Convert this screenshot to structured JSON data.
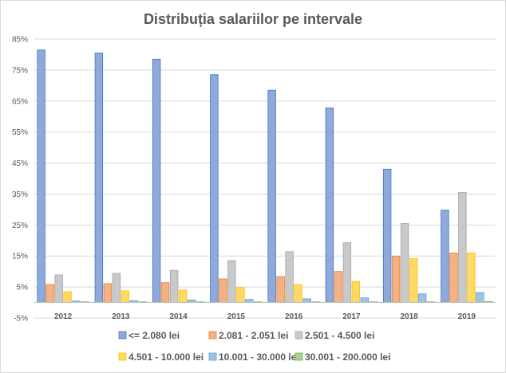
{
  "chart_data": {
    "type": "bar",
    "title": "Distribuția salariilor pe intervale",
    "xlabel": "",
    "ylabel": "",
    "ylim": [
      -5,
      85
    ],
    "yticks": [
      "-5%",
      "5%",
      "15%",
      "25%",
      "35%",
      "45%",
      "55%",
      "65%",
      "75%",
      "85%"
    ],
    "categories": [
      "2012",
      "2013",
      "2014",
      "2015",
      "2016",
      "2017",
      "2018",
      "2019"
    ],
    "grid": true,
    "legend_position": "bottom",
    "series": [
      {
        "name": "<= 2.080 lei",
        "color": "#4472c4",
        "fill": "#8eaadb",
        "values": [
          81.5,
          80.5,
          78.5,
          73.5,
          68.5,
          62.8,
          43,
          29.8
        ]
      },
      {
        "name": "2.081 - 2.051 lei",
        "color": "#ed7d31",
        "fill": "#f4b183",
        "values": [
          5.8,
          6.1,
          6.4,
          7.6,
          8.4,
          10,
          15,
          16
        ]
      },
      {
        "name": "2.501 - 4.500 lei",
        "color": "#a5a5a5",
        "fill": "#c9c9c9",
        "values": [
          8.9,
          9.4,
          10.4,
          13.5,
          16.4,
          19.3,
          25.5,
          35.5
        ]
      },
      {
        "name": "4.501 - 10.000 lei",
        "color": "#ffc000",
        "fill": "#ffd966",
        "values": [
          3.5,
          3.8,
          4,
          4.8,
          5.8,
          6.8,
          14.2,
          16
        ]
      },
      {
        "name": "10.001 - 30.000 lei",
        "color": "#5b9bd5",
        "fill": "#9dc3e6",
        "values": [
          0.5,
          0.6,
          0.8,
          1,
          1.2,
          1.5,
          2.8,
          3.2
        ]
      },
      {
        "name": "30.001 - 200.000 lei",
        "color": "#70ad47",
        "fill": "#a9d18e",
        "values": [
          0.1,
          0.1,
          0.1,
          0.1,
          0.1,
          0.1,
          0.2,
          0.3
        ]
      }
    ]
  }
}
